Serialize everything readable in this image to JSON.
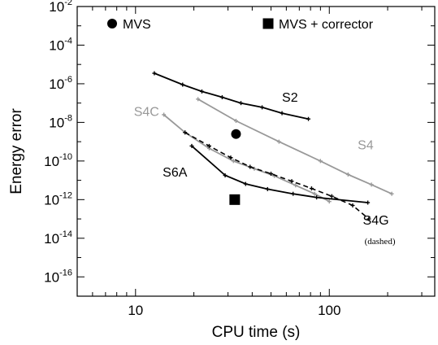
{
  "chart_data": {
    "type": "line",
    "xlabel": "CPU time (s)",
    "ylabel": "Energy error",
    "xscale": "log",
    "yscale": "log",
    "xlim": [
      5,
      350
    ],
    "ylim": [
      1e-17,
      0.01
    ],
    "x_ticks": [
      {
        "value": 10,
        "label": "10"
      },
      {
        "value": 100,
        "label": "100"
      }
    ],
    "y_ticks": [
      {
        "value": 0.01,
        "base": "10",
        "exp": "-2"
      },
      {
        "value": 0.0001,
        "base": "10",
        "exp": "-4"
      },
      {
        "value": 1e-06,
        "base": "10",
        "exp": "-6"
      },
      {
        "value": 1e-08,
        "base": "10",
        "exp": "-8"
      },
      {
        "value": 1e-10,
        "base": "10",
        "exp": "-10"
      },
      {
        "value": 1e-12,
        "base": "10",
        "exp": "-12"
      },
      {
        "value": 1e-14,
        "base": "10",
        "exp": "-14"
      },
      {
        "value": 1e-16,
        "base": "10",
        "exp": "-16"
      }
    ],
    "series": [
      {
        "name": "S2",
        "color": "#000000",
        "dashed": false,
        "x": [
          12.5,
          17.5,
          22,
          28,
          35,
          45,
          57,
          78
        ],
        "y": [
          3.5e-06,
          9e-07,
          4e-07,
          2e-07,
          1e-07,
          6e-08,
          3e-08,
          1.5e-08
        ]
      },
      {
        "name": "S4",
        "color": "#999999",
        "dashed": false,
        "x": [
          21,
          33,
          55,
          90,
          125,
          165,
          210
        ],
        "y": [
          1.6e-07,
          1.2e-08,
          1e-09,
          1e-10,
          2e-11,
          6e-12,
          2e-12
        ]
      },
      {
        "name": "S4C",
        "color": "#999999",
        "dashed": false,
        "x": [
          14,
          18,
          24,
          32,
          41,
          52,
          67,
          84,
          100
        ],
        "y": [
          2.5e-08,
          3e-09,
          4.5e-10,
          1e-10,
          4e-11,
          1.7e-11,
          5.5e-12,
          2e-12,
          8e-13
        ]
      },
      {
        "name": "S4G",
        "color": "#000000",
        "dashed": true,
        "x": [
          18,
          24,
          31,
          39,
          50,
          64,
          81,
          103,
          132,
          160
        ],
        "y": [
          3e-09,
          6e-10,
          1.5e-10,
          5e-11,
          2.2e-11,
          9e-12,
          3.8e-12,
          1.5e-12,
          5e-13,
          1e-13
        ]
      },
      {
        "name": "S6A",
        "color": "#000000",
        "dashed": false,
        "x": [
          19.5,
          29,
          37,
          48,
          65,
          86,
          158
        ],
        "y": [
          6e-10,
          1.8e-11,
          6.5e-12,
          3.5e-12,
          2e-12,
          1.3e-12,
          7e-13
        ]
      }
    ],
    "points": [
      {
        "name": "MVS",
        "marker": "circle",
        "x": 33,
        "y": 2.5e-09
      },
      {
        "name": "MVS + corrector",
        "marker": "square",
        "x": 32.5,
        "y": 1e-12
      }
    ],
    "annotations": [
      {
        "text": "S2",
        "color": "#000000",
        "x": 57,
        "y": 1.2e-07
      },
      {
        "text": "S4C",
        "color": "#999999",
        "x": 9.8,
        "y": 2.2e-08
      },
      {
        "text": "S4",
        "color": "#999999",
        "x": 140,
        "y": 4e-10
      },
      {
        "text": "S6A",
        "color": "#000000",
        "x": 13.8,
        "y": 1.6e-11
      },
      {
        "text": "S4G",
        "color": "#000000",
        "x": 149,
        "y": 5e-14
      }
    ],
    "notes": [
      {
        "text": "(dashed)",
        "x": 152,
        "y": 5e-15
      }
    ],
    "legend": {
      "placement": "top",
      "entries": [
        {
          "label": "MVS",
          "marker": "circle"
        },
        {
          "label": "MVS + corrector",
          "marker": "square"
        }
      ]
    },
    "grid": false
  }
}
